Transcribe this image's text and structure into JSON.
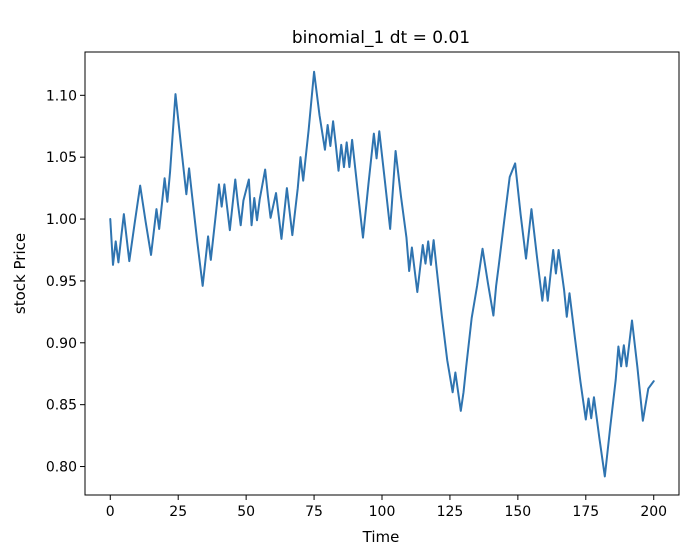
{
  "chart_data": {
    "type": "line",
    "title": "binomial_1 dt = 0.01",
    "xlabel": "Time",
    "ylabel": "stock Price",
    "xlim": [
      -9.3,
      209.3
    ],
    "ylim": [
      0.777,
      1.135
    ],
    "xticks": [
      0,
      25,
      50,
      75,
      100,
      125,
      150,
      175,
      200
    ],
    "xtick_labels": [
      "0",
      "25",
      "50",
      "75",
      "100",
      "125",
      "150",
      "175",
      "200"
    ],
    "yticks": [
      0.8,
      0.85,
      0.9,
      0.95,
      1.0,
      1.05,
      1.1
    ],
    "ytick_labels": [
      "0.80",
      "0.85",
      "0.90",
      "0.95",
      "1.00",
      "1.05",
      "1.10"
    ],
    "grid": false,
    "color": "#2f74b0",
    "series": [
      {
        "x": [
          0,
          1,
          2,
          3,
          4,
          5,
          7,
          9,
          11,
          13,
          15,
          17,
          18,
          19,
          20,
          21,
          22,
          24,
          26,
          28,
          29,
          30,
          32,
          34,
          36,
          37,
          39,
          40,
          41,
          42,
          44,
          46,
          47,
          48,
          49,
          51,
          52,
          53,
          54,
          55,
          57,
          58,
          59,
          61,
          63,
          65,
          67,
          69,
          70,
          71,
          73,
          75,
          77,
          79,
          80,
          81,
          82,
          83,
          84,
          85,
          86,
          87,
          88,
          89,
          91,
          93,
          95,
          97,
          98,
          99,
          101,
          103,
          105,
          107,
          109,
          110,
          111,
          113,
          115,
          116,
          117,
          118,
          119,
          120,
          122,
          124,
          126,
          127,
          129,
          130,
          131,
          133,
          135,
          137,
          139,
          141,
          142,
          143,
          145,
          147,
          149,
          151,
          153,
          155,
          157,
          159,
          160,
          161,
          162,
          163,
          164,
          165,
          167,
          168,
          169,
          171,
          173,
          175,
          176,
          177,
          178,
          180,
          182,
          184,
          186,
          187,
          188,
          189,
          190,
          192,
          194,
          196,
          198,
          200
        ],
        "y": [
          1.0,
          0.963,
          0.982,
          0.965,
          0.985,
          1.004,
          0.966,
          0.997,
          1.027,
          0.998,
          0.971,
          1.008,
          0.992,
          1.012,
          1.033,
          1.014,
          1.038,
          1.101,
          1.06,
          1.02,
          1.041,
          1.021,
          0.982,
          0.946,
          0.986,
          0.967,
          1.007,
          1.028,
          1.01,
          1.028,
          0.991,
          1.032,
          1.012,
          0.995,
          1.015,
          1.032,
          0.995,
          1.017,
          0.999,
          1.016,
          1.04,
          1.019,
          1.001,
          1.021,
          0.984,
          1.025,
          0.987,
          1.025,
          1.05,
          1.031,
          1.072,
          1.119,
          1.084,
          1.056,
          1.076,
          1.059,
          1.079,
          1.06,
          1.039,
          1.06,
          1.042,
          1.062,
          1.042,
          1.064,
          1.024,
          0.985,
          1.028,
          1.069,
          1.049,
          1.071,
          1.032,
          0.992,
          1.055,
          1.018,
          0.985,
          0.958,
          0.977,
          0.941,
          0.979,
          0.964,
          0.982,
          0.963,
          0.983,
          0.962,
          0.922,
          0.886,
          0.86,
          0.876,
          0.845,
          0.86,
          0.881,
          0.92,
          0.946,
          0.976,
          0.948,
          0.922,
          0.946,
          0.963,
          0.999,
          1.034,
          1.045,
          1.004,
          0.968,
          1.008,
          0.97,
          0.934,
          0.953,
          0.934,
          0.955,
          0.975,
          0.956,
          0.975,
          0.943,
          0.921,
          0.94,
          0.904,
          0.869,
          0.838,
          0.855,
          0.839,
          0.856,
          0.823,
          0.792,
          0.832,
          0.87,
          0.897,
          0.881,
          0.898,
          0.881,
          0.918,
          0.88,
          0.837,
          0.863,
          0.869
        ]
      }
    ]
  }
}
